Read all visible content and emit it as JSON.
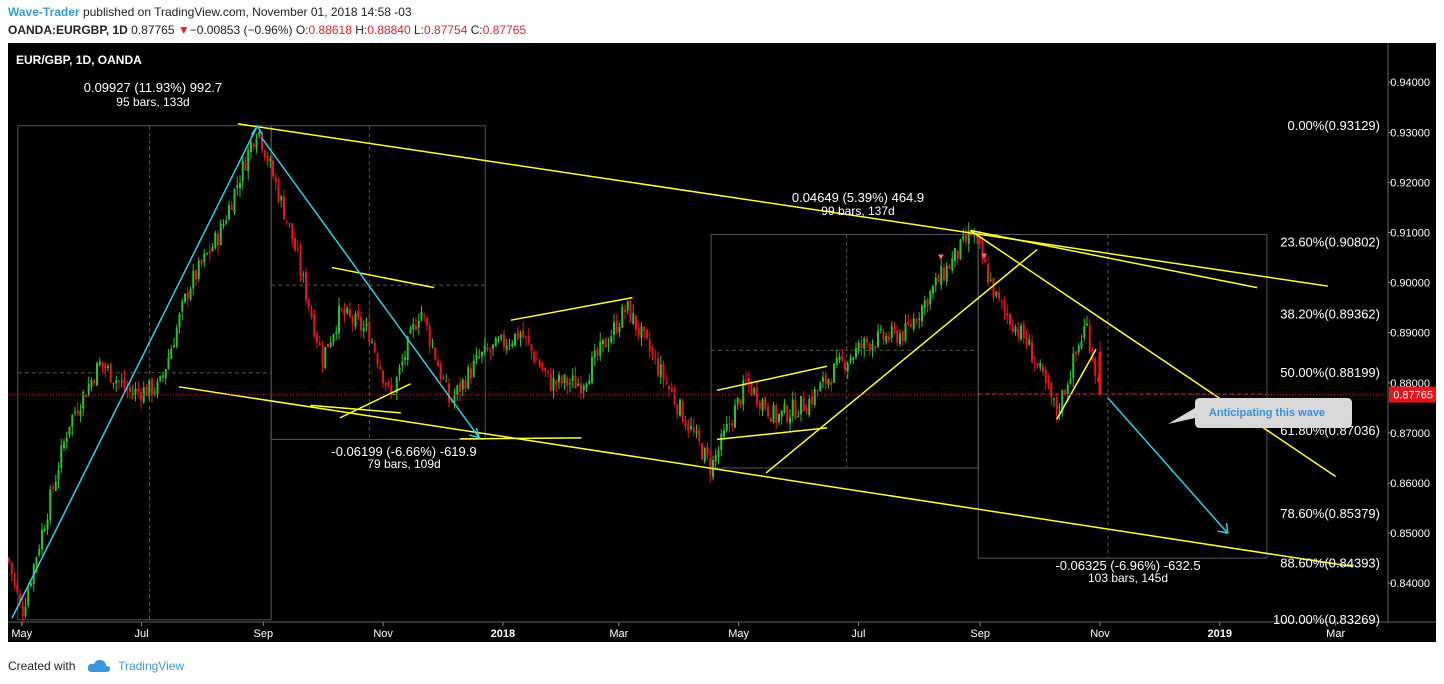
{
  "header": {
    "author": "Wave-Trader",
    "published": "published on TradingView.com, November 01, 2018 14:58 -03",
    "symbol": "OANDA:EURGBP, 1D",
    "last": "0.87765",
    "change": "−0.00853 (−0.96%)",
    "o_label": "O:",
    "o_value": "0.88618",
    "h_label": "H:",
    "h_value": "0.88840",
    "l_label": "L:",
    "l_value": "0.87754",
    "c_label": "C:",
    "c_value": "0.87765"
  },
  "footer": {
    "created_with": "Created with",
    "brand": "TradingView"
  },
  "colors": {
    "background": "#000000",
    "up": "#2fbf2f",
    "down": "#e8131b",
    "trendline": "#ffff33",
    "wave": "#33ccee",
    "text": "#ffffff",
    "price_tag": "#e8131b"
  },
  "chart_data": {
    "type": "candlestick",
    "title": "EUR/GBP, 1D, OANDA",
    "x_ticks": [
      "May",
      "Jul",
      "Sep",
      "Nov",
      "2018",
      "Mar",
      "May",
      "Jul",
      "Sep",
      "Nov",
      "2019",
      "Mar"
    ],
    "y_ticks": [
      "0.84000",
      "0.85000",
      "0.86000",
      "0.87000",
      "0.88000",
      "0.89000",
      "0.90000",
      "0.91000",
      "0.92000",
      "0.93000",
      "0.94000"
    ],
    "ylim": [
      0.8315,
      0.9455
    ],
    "last_price": "0.87765",
    "price_path": [
      {
        "d": "2017-04-24",
        "p": 0.845
      },
      {
        "d": "2017-05-01",
        "p": 0.834
      },
      {
        "d": "2017-05-15",
        "p": 0.856
      },
      {
        "d": "2017-05-25",
        "p": 0.872
      },
      {
        "d": "2017-06-10",
        "p": 0.884
      },
      {
        "d": "2017-06-25",
        "p": 0.878
      },
      {
        "d": "2017-07-10",
        "p": 0.879
      },
      {
        "d": "2017-07-25",
        "p": 0.899
      },
      {
        "d": "2017-08-10",
        "p": 0.91
      },
      {
        "d": "2017-08-29",
        "p": 0.9312
      },
      {
        "d": "2017-09-15",
        "p": 0.91
      },
      {
        "d": "2017-10-01",
        "p": 0.885
      },
      {
        "d": "2017-10-10",
        "p": 0.894
      },
      {
        "d": "2017-10-25",
        "p": 0.89
      },
      {
        "d": "2017-11-05",
        "p": 0.877
      },
      {
        "d": "2017-11-20",
        "p": 0.895
      },
      {
        "d": "2017-12-05",
        "p": 0.876
      },
      {
        "d": "2017-12-20",
        "p": 0.885
      },
      {
        "d": "2018-01-10",
        "p": 0.89
      },
      {
        "d": "2018-01-25",
        "p": 0.88
      },
      {
        "d": "2018-02-10",
        "p": 0.88
      },
      {
        "d": "2018-03-05",
        "p": 0.895
      },
      {
        "d": "2018-03-25",
        "p": 0.88
      },
      {
        "d": "2018-04-17",
        "p": 0.863
      },
      {
        "d": "2018-05-05",
        "p": 0.88
      },
      {
        "d": "2018-05-20",
        "p": 0.873
      },
      {
        "d": "2018-06-05",
        "p": 0.876
      },
      {
        "d": "2018-06-20",
        "p": 0.883
      },
      {
        "d": "2018-07-05",
        "p": 0.888
      },
      {
        "d": "2018-07-25",
        "p": 0.89
      },
      {
        "d": "2018-08-10",
        "p": 0.9
      },
      {
        "d": "2018-08-28",
        "p": 0.91
      },
      {
        "d": "2018-09-10",
        "p": 0.896
      },
      {
        "d": "2018-09-25",
        "p": 0.888
      },
      {
        "d": "2018-10-10",
        "p": 0.874
      },
      {
        "d": "2018-10-25",
        "p": 0.892
      },
      {
        "d": "2018-11-01",
        "p": 0.8777
      }
    ],
    "fibonacci": [
      {
        "label": "0.00%(0.93129)",
        "price": 0.93129
      },
      {
        "label": "23.60%(0.90802)",
        "price": 0.90802
      },
      {
        "label": "38.20%(0.89362)",
        "price": 0.89362
      },
      {
        "label": "50.00%(0.88199)",
        "price": 0.88199
      },
      {
        "label": "61.80%(0.87036)",
        "price": 0.87036
      },
      {
        "label": "78.60%(0.85379)",
        "price": 0.85379
      },
      {
        "label": "88.60%(0.84393)",
        "price": 0.84393
      },
      {
        "label": "100.00%(0.83269)",
        "price": 0.83269
      }
    ],
    "measurements": [
      {
        "line1": "0.09927 (11.93%) 992.7",
        "line2": "95 bars, 133d"
      },
      {
        "line1": "-0.06199 (-6.66%) -619.9",
        "line2": "79 bars, 109d"
      },
      {
        "line1": "0.04649 (5.39%) 464.9",
        "line2": "99 bars, 137d"
      },
      {
        "line1": "-0.06325 (-6.96%) -632.5",
        "line2": "103 bars, 145d"
      }
    ],
    "callout": "Anticipating this wave"
  }
}
